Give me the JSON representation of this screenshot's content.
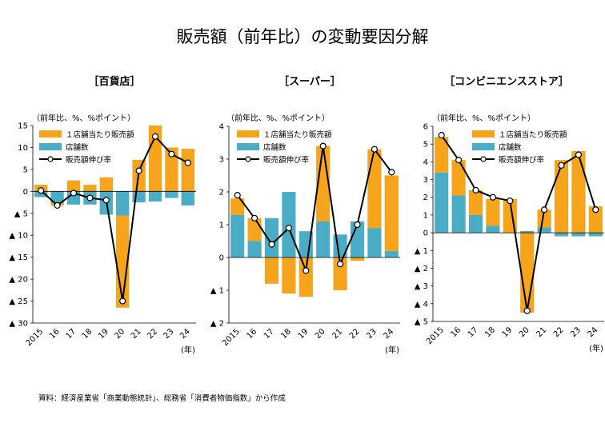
{
  "title": "販売額（前年比）の変動要因分解",
  "source": "資料：経済産業省「商業動態統計」、総務省「消費者物価指数」から作成",
  "colors": {
    "store_sales": "#F5A41B",
    "stores": "#4BACC6",
    "line": "#000000"
  },
  "chart_data": [
    {
      "type": "bar",
      "panel_title": "［百貨店］",
      "unit_label": "（前年比、%、%ポイント）",
      "x_unit": "(年)",
      "categories": [
        "2015",
        "16",
        "17",
        "18",
        "19",
        "20",
        "21",
        "22",
        "23",
        "24"
      ],
      "ylim": [
        -30,
        15
      ],
      "yticks": [
        15,
        10,
        5,
        0,
        -5,
        -10,
        -15,
        -20,
        -25,
        -30
      ],
      "ytick_labels": [
        "15",
        "10",
        "5",
        "0",
        "▲ 5",
        "▲ 10",
        "▲ 15",
        "▲ 20",
        "▲ 25",
        "▲ 30"
      ],
      "legend": [
        "１店舗当たり販売額",
        "店舗数",
        "販売額伸び率"
      ],
      "series": [
        {
          "name": "１店舗当たり販売額",
          "values": [
            1.5,
            -0.5,
            2.5,
            1.5,
            3.2,
            -21,
            7.2,
            15.0,
            10.0,
            9.7
          ]
        },
        {
          "name": "店舗数",
          "values": [
            -1.3,
            -2.8,
            -3.0,
            -3.0,
            -5.3,
            -5.5,
            -2.5,
            -2.3,
            -1.5,
            -3.2
          ]
        },
        {
          "name": "販売額伸び率",
          "type": "line",
          "values": [
            0.2,
            -3.2,
            -0.4,
            -1.5,
            -2.0,
            -25.0,
            4.7,
            12.5,
            8.5,
            6.5
          ]
        }
      ]
    },
    {
      "type": "bar",
      "panel_title": "［スーパー］",
      "unit_label": "（前年比、%、%ポイント）",
      "x_unit": "(年)",
      "categories": [
        "2015",
        "16",
        "17",
        "18",
        "19",
        "20",
        "21",
        "22",
        "23",
        "24"
      ],
      "ylim": [
        -2,
        4
      ],
      "yticks": [
        4,
        3,
        2,
        1,
        0,
        -1,
        -2
      ],
      "ytick_labels": [
        "4",
        "3",
        "2",
        "1",
        "0",
        "▲ 1",
        "▲ 2"
      ],
      "legend": [
        "１店舗当たり販売額",
        "店舗数",
        "販売額伸び率"
      ],
      "series": [
        {
          "name": "１店舗当たり販売額",
          "values": [
            0.5,
            0.7,
            -0.8,
            -1.1,
            -1.2,
            2.3,
            -1.0,
            -0.1,
            2.4,
            2.3
          ]
        },
        {
          "name": "店舗数",
          "values": [
            1.3,
            0.5,
            1.2,
            2.0,
            0.8,
            1.1,
            0.7,
            1.1,
            0.9,
            0.2
          ]
        },
        {
          "name": "販売額伸び率",
          "type": "line",
          "values": [
            1.9,
            1.2,
            0.4,
            0.9,
            -0.4,
            3.4,
            -0.2,
            1.0,
            3.3,
            2.6
          ]
        }
      ]
    },
    {
      "type": "bar",
      "panel_title": "［コンビニエンスストア］",
      "unit_label": "（前年比、%、%ポイント）",
      "x_unit": "(年)",
      "categories": [
        "2015",
        "16",
        "17",
        "18",
        "19",
        "20",
        "21",
        "22",
        "23",
        "24"
      ],
      "ylim": [
        -5,
        6
      ],
      "yticks": [
        6,
        5,
        4,
        3,
        2,
        1,
        0,
        -1,
        -2,
        -3,
        -4,
        -5
      ],
      "ytick_labels": [
        "6",
        "5",
        "4",
        "3",
        "2",
        "1",
        "0",
        "▲ 1",
        "▲ 2",
        "▲ 3",
        "▲ 4",
        "▲ 5"
      ],
      "legend": [
        "１店舗当たり販売額",
        "店舗数",
        "販売額伸び率"
      ],
      "series": [
        {
          "name": "１店舗当たり販売額",
          "values": [
            2.0,
            2.0,
            1.4,
            1.5,
            1.9,
            -4.5,
            1.0,
            4.1,
            4.6,
            1.5
          ]
        },
        {
          "name": "店舗数",
          "values": [
            3.4,
            2.1,
            1.0,
            0.4,
            0.0,
            0.1,
            0.3,
            -0.2,
            -0.2,
            -0.2
          ]
        },
        {
          "name": "販売額伸び率",
          "type": "line",
          "values": [
            5.5,
            4.1,
            2.4,
            2.0,
            1.8,
            -4.4,
            1.3,
            3.8,
            4.4,
            1.3
          ]
        }
      ]
    }
  ]
}
